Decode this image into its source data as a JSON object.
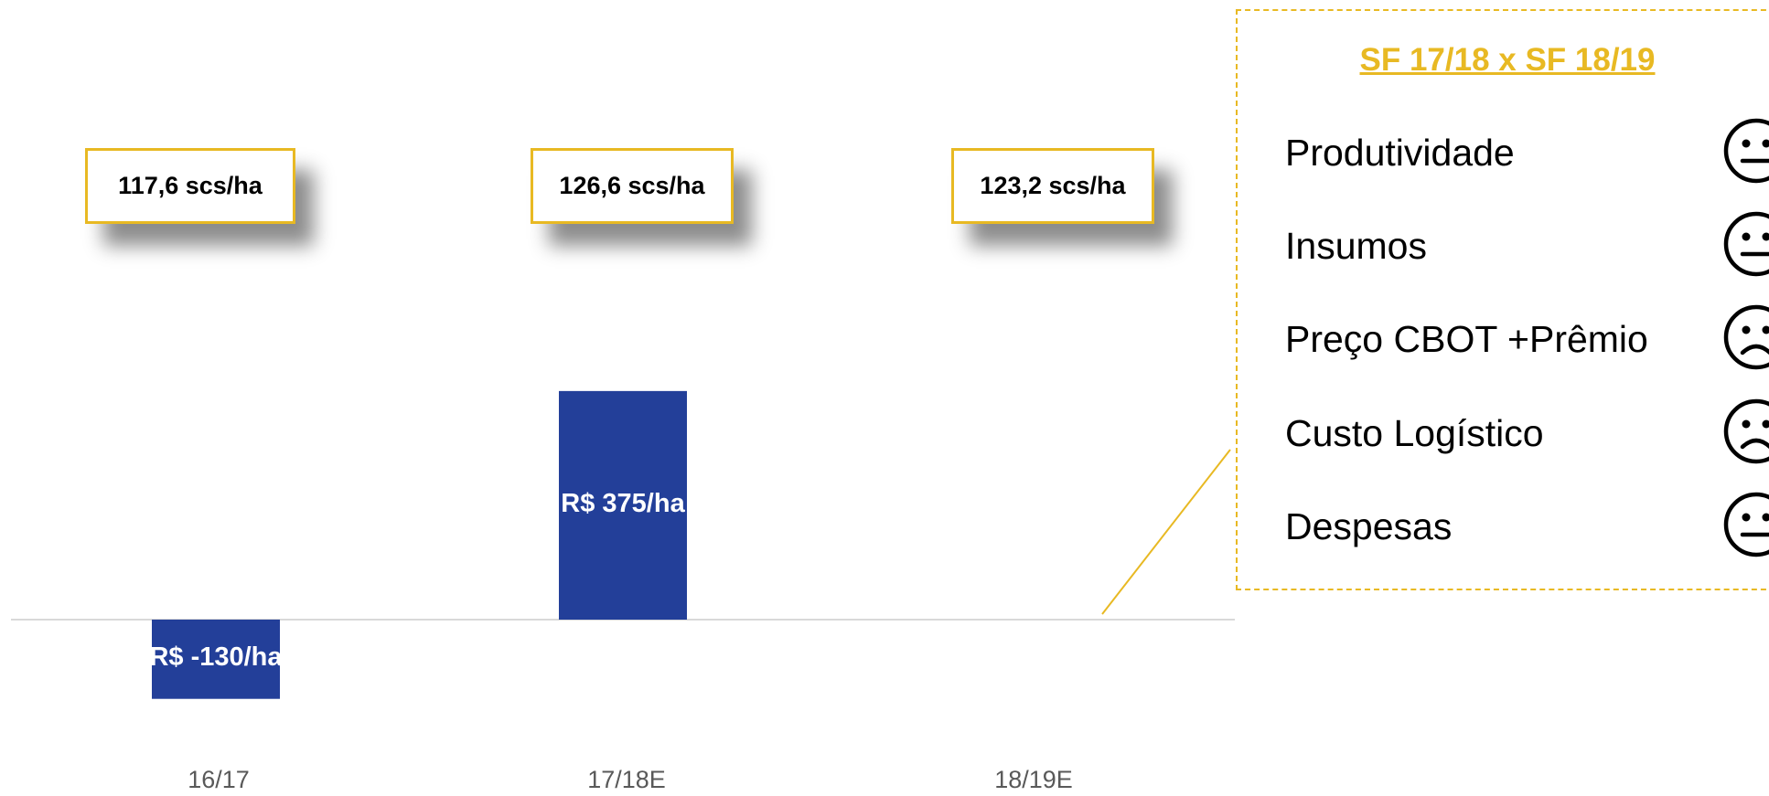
{
  "chart_data": {
    "type": "bar",
    "categories": [
      "16/17",
      "17/18E",
      "18/19E"
    ],
    "series": [
      {
        "values": [
          -130,
          375,
          null
        ]
      }
    ],
    "data_labels": [
      "R$ -130/ha",
      "R$ 375/ha",
      ""
    ],
    "yield_labels": [
      "117,6 scs/ha",
      "126,6 scs/ha",
      "123,2 scs/ha"
    ],
    "grid": false,
    "colors": {
      "bar": "#233f99",
      "accent": "#e8b923",
      "axis": "#d9d9d9",
      "category_text": "#595959"
    }
  },
  "panel": {
    "title": "SF 17/18 x SF 18/19",
    "items": [
      {
        "label": "Produtividade",
        "face": "neutral"
      },
      {
        "label": "Insumos",
        "face": "neutral"
      },
      {
        "label": "Preço CBOT +Prêmio",
        "face": "sad"
      },
      {
        "label": "Custo Logístico",
        "face": "sad"
      },
      {
        "label": "Despesas",
        "face": "neutral"
      }
    ]
  }
}
